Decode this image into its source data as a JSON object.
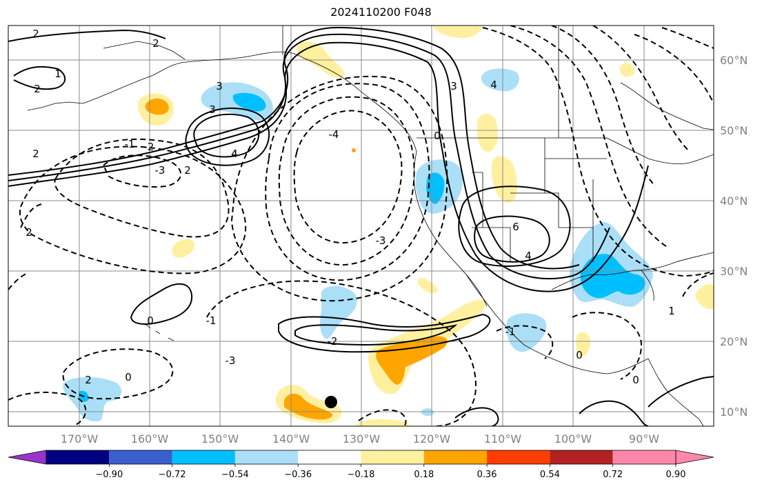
{
  "title": "2024110200 F048",
  "map": {
    "lat_labels": [
      "60°N",
      "50°N",
      "40°N",
      "30°N",
      "20°N",
      "10°N"
    ],
    "lon_labels": [
      "170°W",
      "160°W",
      "150°W",
      "140°W",
      "130°W",
      "120°W",
      "110°W",
      "100°W",
      "90°W"
    ],
    "contour_labels": [
      "2",
      "1",
      "2",
      "-1",
      "2",
      "3",
      "3",
      "4",
      "2",
      "-2",
      "-3",
      "2",
      "-4",
      "-3",
      "0",
      "3",
      "4",
      "4",
      "6",
      "4",
      "-2",
      "-1",
      "-3",
      "0",
      "2",
      "0",
      "-1",
      "0",
      "0",
      "1",
      "2"
    ],
    "colors": {
      "light_blue": "#aadff7",
      "blue": "#00bfff",
      "light_yellow": "#fff0a0",
      "orange": "#ffa500",
      "grid": "#8a8a8a",
      "land_outline": "#000000"
    }
  },
  "colorbar": {
    "colors": [
      "#9933cc",
      "#000080",
      "#3a5fcd",
      "#00bfff",
      "#aadff7",
      "#ffffff",
      "#fff0a0",
      "#ffa500",
      "#ff3d00",
      "#b22222",
      "#ff88aa",
      "#ff88aa"
    ],
    "labels": [
      "−0.90",
      "−0.72",
      "−0.54",
      "−0.36",
      "−0.18",
      "0.18",
      "0.36",
      "0.54",
      "0.72",
      "0.90"
    ]
  }
}
